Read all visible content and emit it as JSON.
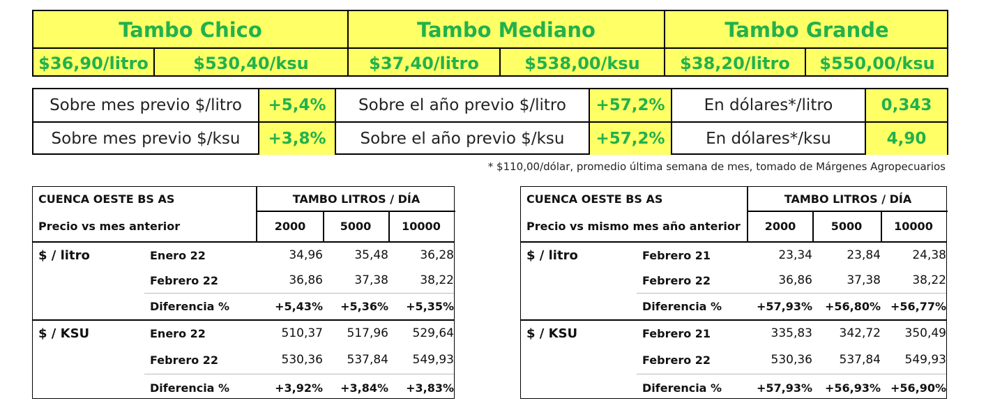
{
  "banner": {
    "tiers": [
      {
        "name": "Tambo Chico",
        "litro": "$36,90/litro",
        "ksu": "$530,40/ksu"
      },
      {
        "name": "Tambo Mediano",
        "litro": "$37,40/litro",
        "ksu": "$538,00/ksu"
      },
      {
        "name": "Tambo Grande",
        "litro": "$38,20/litro",
        "ksu": "$550,00/ksu"
      }
    ]
  },
  "variation": {
    "rows": [
      {
        "l1": "Sobre mes previo $/litro",
        "v1": "+5,4%",
        "l2": "Sobre el año previo $/litro",
        "v2": "+57,2%",
        "l3": "En dólares*/litro",
        "v3": "0,343"
      },
      {
        "l1": "Sobre mes previo $/ksu",
        "v1": "+3,8%",
        "l2": "Sobre el año previo $/ksu",
        "v2": "+57,2%",
        "l3": "En dólares*/ksu",
        "v3": "4,90"
      }
    ]
  },
  "footnote": "* $110,00/dólar, promedio última semana de mes, tomado de Márgenes Agropecuarios",
  "tables": [
    {
      "region": "CUENCA OESTE BS AS",
      "group_header": "TAMBO LITROS / DÍA",
      "subtitle": "Precio vs mes anterior",
      "cols": [
        "2000",
        "5000",
        "10000"
      ],
      "sections": [
        {
          "label": "$ / litro",
          "rows": [
            {
              "name": "Enero 22",
              "vals": [
                "34,96",
                "35,48",
                "36,28"
              ],
              "bold": false
            },
            {
              "name": "Febrero 22",
              "vals": [
                "36,86",
                "37,38",
                "38,22"
              ],
              "bold": false
            },
            {
              "name": "Diferencia %",
              "vals": [
                "+5,43%",
                "+5,36%",
                "+5,35%"
              ],
              "bold": true
            }
          ]
        },
        {
          "label": "$ / KSU",
          "rows": [
            {
              "name": "Enero 22",
              "vals": [
                "510,37",
                "517,96",
                "529,64"
              ],
              "bold": false
            },
            {
              "name": "Febrero 22",
              "vals": [
                "530,36",
                "537,84",
                "549,93"
              ],
              "bold": false
            },
            {
              "name": "Diferencia %",
              "vals": [
                "+3,92%",
                "+3,84%",
                "+3,83%"
              ],
              "bold": true
            }
          ]
        }
      ]
    },
    {
      "region": "CUENCA OESTE BS AS",
      "group_header": "TAMBO LITROS / DÍA",
      "subtitle": "Precio vs mismo mes año anterior",
      "cols": [
        "2000",
        "5000",
        "10000"
      ],
      "sections": [
        {
          "label": "$ / litro",
          "rows": [
            {
              "name": "Febrero 21",
              "vals": [
                "23,34",
                "23,84",
                "24,38"
              ],
              "bold": false
            },
            {
              "name": "Febrero 22",
              "vals": [
                "36,86",
                "37,38",
                "38,22"
              ],
              "bold": false
            },
            {
              "name": "Diferencia %",
              "vals": [
                "+57,93%",
                "+56,80%",
                "+56,77%"
              ],
              "bold": true
            }
          ]
        },
        {
          "label": "$ / KSU",
          "rows": [
            {
              "name": "Febrero 21",
              "vals": [
                "335,83",
                "342,72",
                "350,49"
              ],
              "bold": false
            },
            {
              "name": "Febrero 22",
              "vals": [
                "530,36",
                "537,84",
                "549,93"
              ],
              "bold": false
            },
            {
              "name": "Diferencia %",
              "vals": [
                "+57,93%",
                "+56,93%",
                "+56,90%"
              ],
              "bold": true
            }
          ]
        }
      ]
    }
  ]
}
